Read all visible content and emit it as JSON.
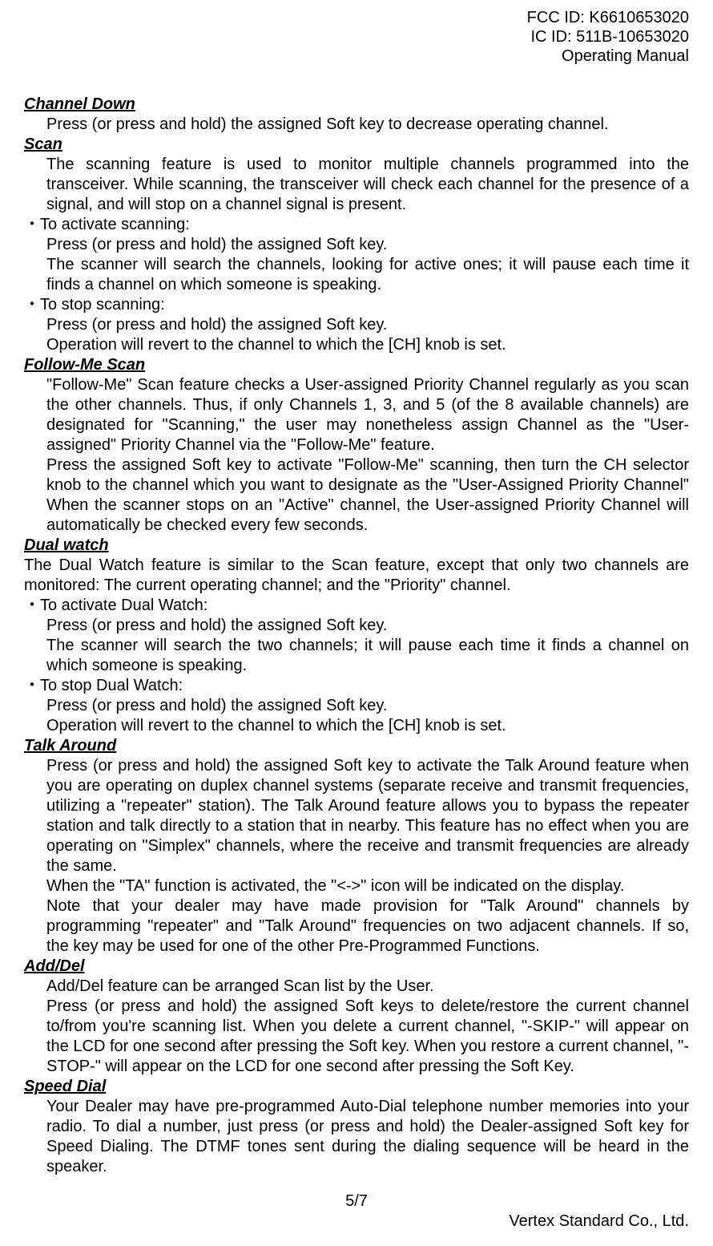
{
  "header": {
    "fcc": "FCC ID: K6610653020",
    "ic": "IC ID: 511B-10653020",
    "title": "Operating Manual"
  },
  "sections": {
    "channel_down": {
      "title": "Channel Down",
      "p1": "Press (or press and hold) the assigned Soft key to decrease operating channel."
    },
    "scan": {
      "title": "Scan",
      "p1": "The scanning feature is used to monitor multiple channels programmed into the transceiver. While scanning, the transceiver will check each channel for the presence of a signal, and will stop on a channel signal is present.",
      "b1": "・To activate scanning:",
      "b1p1": "Press (or press and hold) the assigned Soft key.",
      "b1p2": "The scanner will search the channels, looking for active ones; it will pause each time it finds a channel on which someone is speaking.",
      "b2": "・To stop scanning:",
      "b2p1": "Press (or press and hold) the assigned Soft key.",
      "b2p2": "Operation will revert to the channel to which the [CH] knob is set."
    },
    "follow_me": {
      "title": "Follow-Me Scan",
      "p1": "\"Follow-Me\" Scan feature checks a User-assigned Priority Channel regularly as you scan the other channels. Thus, if only Channels 1, 3, and 5 (of the 8 available channels) are designated for \"Scanning,\" the user may nonetheless assign Channel as the \"User-assigned\" Priority Channel via the \"Follow-Me\" feature.",
      "p2": "Press the assigned Soft key to activate \"Follow-Me\" scanning, then turn the CH selector knob to the channel which you want to designate as the \"User-Assigned Priority Channel\" When the scanner stops on an \"Active\" channel, the User-assigned Priority Channel will automatically be checked every few seconds."
    },
    "dual_watch": {
      "title": "Dual watch",
      "p1": "The Dual Watch feature is similar to the Scan feature, except that only two channels are monitored: The current operating channel; and the \"Priority\" channel.",
      "b1": "・To activate Dual Watch:",
      "b1p1": "Press (or press and hold) the assigned Soft key.",
      "b1p2": "The scanner will search the two channels; it will pause each time it finds a channel on which someone is speaking.",
      "b2": "・To stop Dual Watch:",
      "b2p1": "Press (or press and hold) the assigned Soft key.",
      "b2p2": "Operation will revert to the channel to which the [CH] knob is set."
    },
    "talk_around": {
      "title": "Talk Around",
      "p1": "Press (or press and hold) the assigned Soft key to activate the Talk Around feature when you are operating on duplex channel systems (separate receive and transmit frequencies, utilizing a \"repeater\" station). The Talk Around feature allows you to bypass the repeater station and talk directly to a station that in nearby. This feature has no effect when you are operating on \"Simplex\" channels, where the receive and transmit frequencies are already the same.",
      "p2": "When the \"TA\" function is activated, the \"<->\" icon will be indicated on the display.",
      "p3": "Note that your dealer may have made provision for \"Talk Around\" channels by programming \"repeater\" and \"Talk Around\" frequencies on two adjacent channels. If so, the key may be used for one of the other Pre-Programmed Functions."
    },
    "add_del": {
      "title": "Add/Del",
      "p1": "Add/Del feature can be arranged Scan list by the User.",
      "p2": "Press (or press and hold) the assigned Soft keys to delete/restore the current channel to/from you're scanning list. When you delete a current channel, \"-SKIP-\" will appear on the LCD for one second after pressing the Soft key. When you restore a current channel, \"-STOP-\" will appear on the LCD for one second after pressing the Soft Key."
    },
    "speed_dial": {
      "title": "Speed Dial",
      "p1": "Your Dealer may have pre-programmed Auto-Dial telephone number memories into your radio. To dial a number, just press (or press and hold) the Dealer-assigned Soft key for Speed Dialing. The DTMF tones sent during the dialing sequence will be heard in the speaker."
    }
  },
  "footer": {
    "page": "5/7",
    "company": "Vertex Standard Co., Ltd."
  }
}
